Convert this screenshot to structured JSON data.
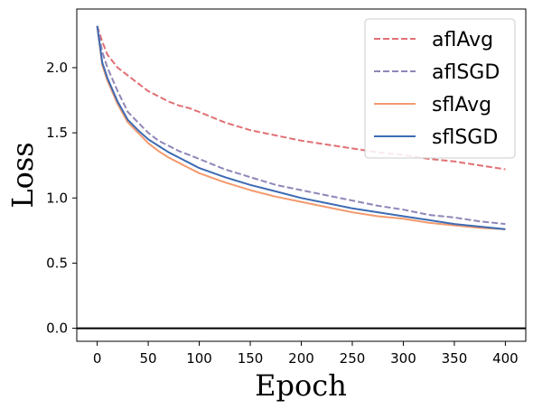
{
  "chart_data": {
    "type": "line",
    "xlabel": "Epoch",
    "ylabel": "Loss",
    "xlim": [
      -20,
      420
    ],
    "ylim": [
      -0.1,
      2.45
    ],
    "xticks": [
      0,
      50,
      100,
      150,
      200,
      250,
      300,
      350,
      400
    ],
    "yticks": [
      0.0,
      0.5,
      1.0,
      1.5,
      2.0
    ],
    "xtick_labels": [
      "0",
      "50",
      "100",
      "150",
      "200",
      "250",
      "300",
      "350",
      "400"
    ],
    "ytick_labels": [
      "0.0",
      "0.5",
      "1.0",
      "1.5",
      "2.0"
    ],
    "hline": 0.0,
    "legend_position": "top-right",
    "grid": false,
    "series": [
      {
        "name": "aflAvg",
        "style": "dashed",
        "color": "#e07075",
        "x": [
          0,
          5,
          10,
          20,
          30,
          40,
          50,
          60,
          70,
          80,
          90,
          100,
          125,
          150,
          175,
          200,
          225,
          250,
          275,
          300,
          325,
          350,
          375,
          400
        ],
        "y": [
          2.32,
          2.2,
          2.1,
          2.0,
          1.94,
          1.88,
          1.82,
          1.78,
          1.74,
          1.71,
          1.69,
          1.66,
          1.58,
          1.52,
          1.48,
          1.44,
          1.41,
          1.38,
          1.35,
          1.33,
          1.3,
          1.28,
          1.25,
          1.22
        ]
      },
      {
        "name": "aflSGD",
        "style": "dashed",
        "color": "#8f86b8",
        "x": [
          0,
          5,
          10,
          20,
          30,
          40,
          50,
          60,
          70,
          80,
          90,
          100,
          125,
          150,
          175,
          200,
          225,
          250,
          275,
          300,
          325,
          350,
          375,
          400
        ],
        "y": [
          2.32,
          2.12,
          2.0,
          1.82,
          1.66,
          1.58,
          1.5,
          1.44,
          1.4,
          1.36,
          1.33,
          1.3,
          1.22,
          1.16,
          1.1,
          1.06,
          1.02,
          0.98,
          0.94,
          0.91,
          0.87,
          0.85,
          0.82,
          0.8
        ]
      },
      {
        "name": "sflAvg",
        "style": "solid",
        "color": "#f39a6e",
        "x": [
          0,
          5,
          10,
          20,
          30,
          40,
          50,
          60,
          70,
          80,
          90,
          100,
          125,
          150,
          175,
          200,
          225,
          250,
          275,
          300,
          325,
          350,
          375,
          400
        ],
        "y": [
          2.32,
          2.02,
          1.9,
          1.72,
          1.58,
          1.5,
          1.42,
          1.36,
          1.31,
          1.27,
          1.23,
          1.19,
          1.12,
          1.06,
          1.01,
          0.97,
          0.93,
          0.89,
          0.86,
          0.84,
          0.81,
          0.79,
          0.77,
          0.76
        ]
      },
      {
        "name": "sflSGD",
        "style": "solid",
        "color": "#3d6bb3",
        "x": [
          0,
          5,
          10,
          20,
          30,
          40,
          50,
          60,
          70,
          80,
          90,
          100,
          125,
          150,
          175,
          200,
          225,
          250,
          275,
          300,
          325,
          350,
          375,
          400
        ],
        "y": [
          2.32,
          2.04,
          1.92,
          1.74,
          1.6,
          1.52,
          1.45,
          1.4,
          1.35,
          1.31,
          1.27,
          1.23,
          1.16,
          1.1,
          1.05,
          1.0,
          0.96,
          0.92,
          0.89,
          0.86,
          0.83,
          0.8,
          0.78,
          0.76
        ]
      }
    ]
  }
}
